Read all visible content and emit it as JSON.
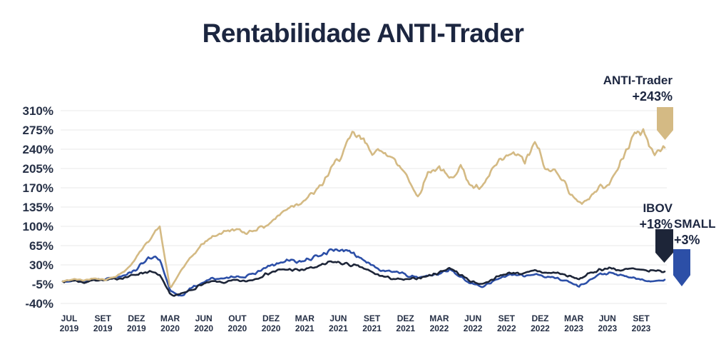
{
  "title": "Rentabilidade ANTI-Trader",
  "palette": {
    "background": "#ffffff",
    "title_text": "#1c2640",
    "axis_text": "#252f45",
    "gridline": "#e9e9e9",
    "anti_trader": "#d4ba84",
    "ibov": "#1d2538",
    "small": "#2c4fa7"
  },
  "chart_data": {
    "type": "line",
    "title": "Rentabilidade ANTI-Trader",
    "grid": "horizontal",
    "ylim": [
      -40,
      310
    ],
    "y_tick_step": 35,
    "y_tick_labels": [
      "310%",
      "275%",
      "240%",
      "205%",
      "170%",
      "135%",
      "100%",
      "65%",
      "30%",
      "-5%",
      "-40%"
    ],
    "x_ticks": [
      {
        "month": "JUL",
        "year": "2019"
      },
      {
        "month": "SET",
        "year": "2019"
      },
      {
        "month": "DEZ",
        "year": "2019"
      },
      {
        "month": "MAR",
        "year": "2020"
      },
      {
        "month": "JUN",
        "year": "2020"
      },
      {
        "month": "OUT",
        "year": "2020"
      },
      {
        "month": "DEZ",
        "year": "2020"
      },
      {
        "month": "MAR",
        "year": "2021"
      },
      {
        "month": "JUN",
        "year": "2021"
      },
      {
        "month": "SET",
        "year": "2021"
      },
      {
        "month": "DEZ",
        "year": "2021"
      },
      {
        "month": "MAR",
        "year": "2022"
      },
      {
        "month": "JUN",
        "year": "2022"
      },
      {
        "month": "SET",
        "year": "2022"
      },
      {
        "month": "DEZ",
        "year": "2022"
      },
      {
        "month": "MAR",
        "year": "2023"
      },
      {
        "month": "JUN",
        "year": "2023"
      },
      {
        "month": "SET",
        "year": "2023"
      }
    ],
    "x_sampling": "57 evenly spaced samples per series, JUL 2019 to OUT 2023 (values in %)",
    "series": [
      {
        "name": "SMALL",
        "label": "+3%",
        "final_value": 3,
        "color": "#2c4fa7",
        "values": [
          0,
          3,
          -1,
          4,
          5,
          8,
          14,
          24,
          45,
          40,
          -18,
          -26,
          -12,
          -2,
          6,
          4,
          10,
          8,
          16,
          26,
          32,
          38,
          36,
          40,
          48,
          57,
          58,
          50,
          40,
          28,
          16,
          20,
          10,
          7,
          10,
          14,
          22,
          8,
          -4,
          -9,
          0,
          9,
          12,
          10,
          14,
          8,
          6,
          0,
          -9,
          2,
          13,
          15,
          10,
          7,
          2,
          0,
          3
        ]
      },
      {
        "name": "IBOV",
        "label": "+18%",
        "final_value": 18,
        "color": "#1d2538",
        "values": [
          0,
          2,
          -2,
          3,
          2,
          5,
          8,
          14,
          18,
          12,
          -25,
          -24,
          -15,
          -5,
          0,
          -2,
          2,
          0,
          5,
          14,
          20,
          22,
          20,
          24,
          28,
          36,
          33,
          29,
          24,
          14,
          8,
          4,
          3,
          6,
          10,
          16,
          25,
          12,
          0,
          -5,
          4,
          13,
          16,
          14,
          20,
          15,
          16,
          10,
          4,
          14,
          22,
          24,
          20,
          23,
          19,
          20,
          18
        ]
      },
      {
        "name": "ANTI-Trader",
        "label": "+243%",
        "final_value": 243,
        "color": "#d4ba84",
        "values": [
          0,
          4,
          2,
          6,
          3,
          10,
          22,
          48,
          75,
          100,
          -14,
          20,
          45,
          68,
          82,
          90,
          95,
          88,
          95,
          102,
          118,
          135,
          142,
          155,
          172,
          205,
          232,
          268,
          255,
          232,
          238,
          215,
          195,
          152,
          198,
          208,
          185,
          210,
          172,
          168,
          205,
          222,
          233,
          218,
          252,
          200,
          202,
          168,
          140,
          152,
          172,
          180,
          220,
          262,
          275,
          230,
          243
        ]
      }
    ]
  }
}
